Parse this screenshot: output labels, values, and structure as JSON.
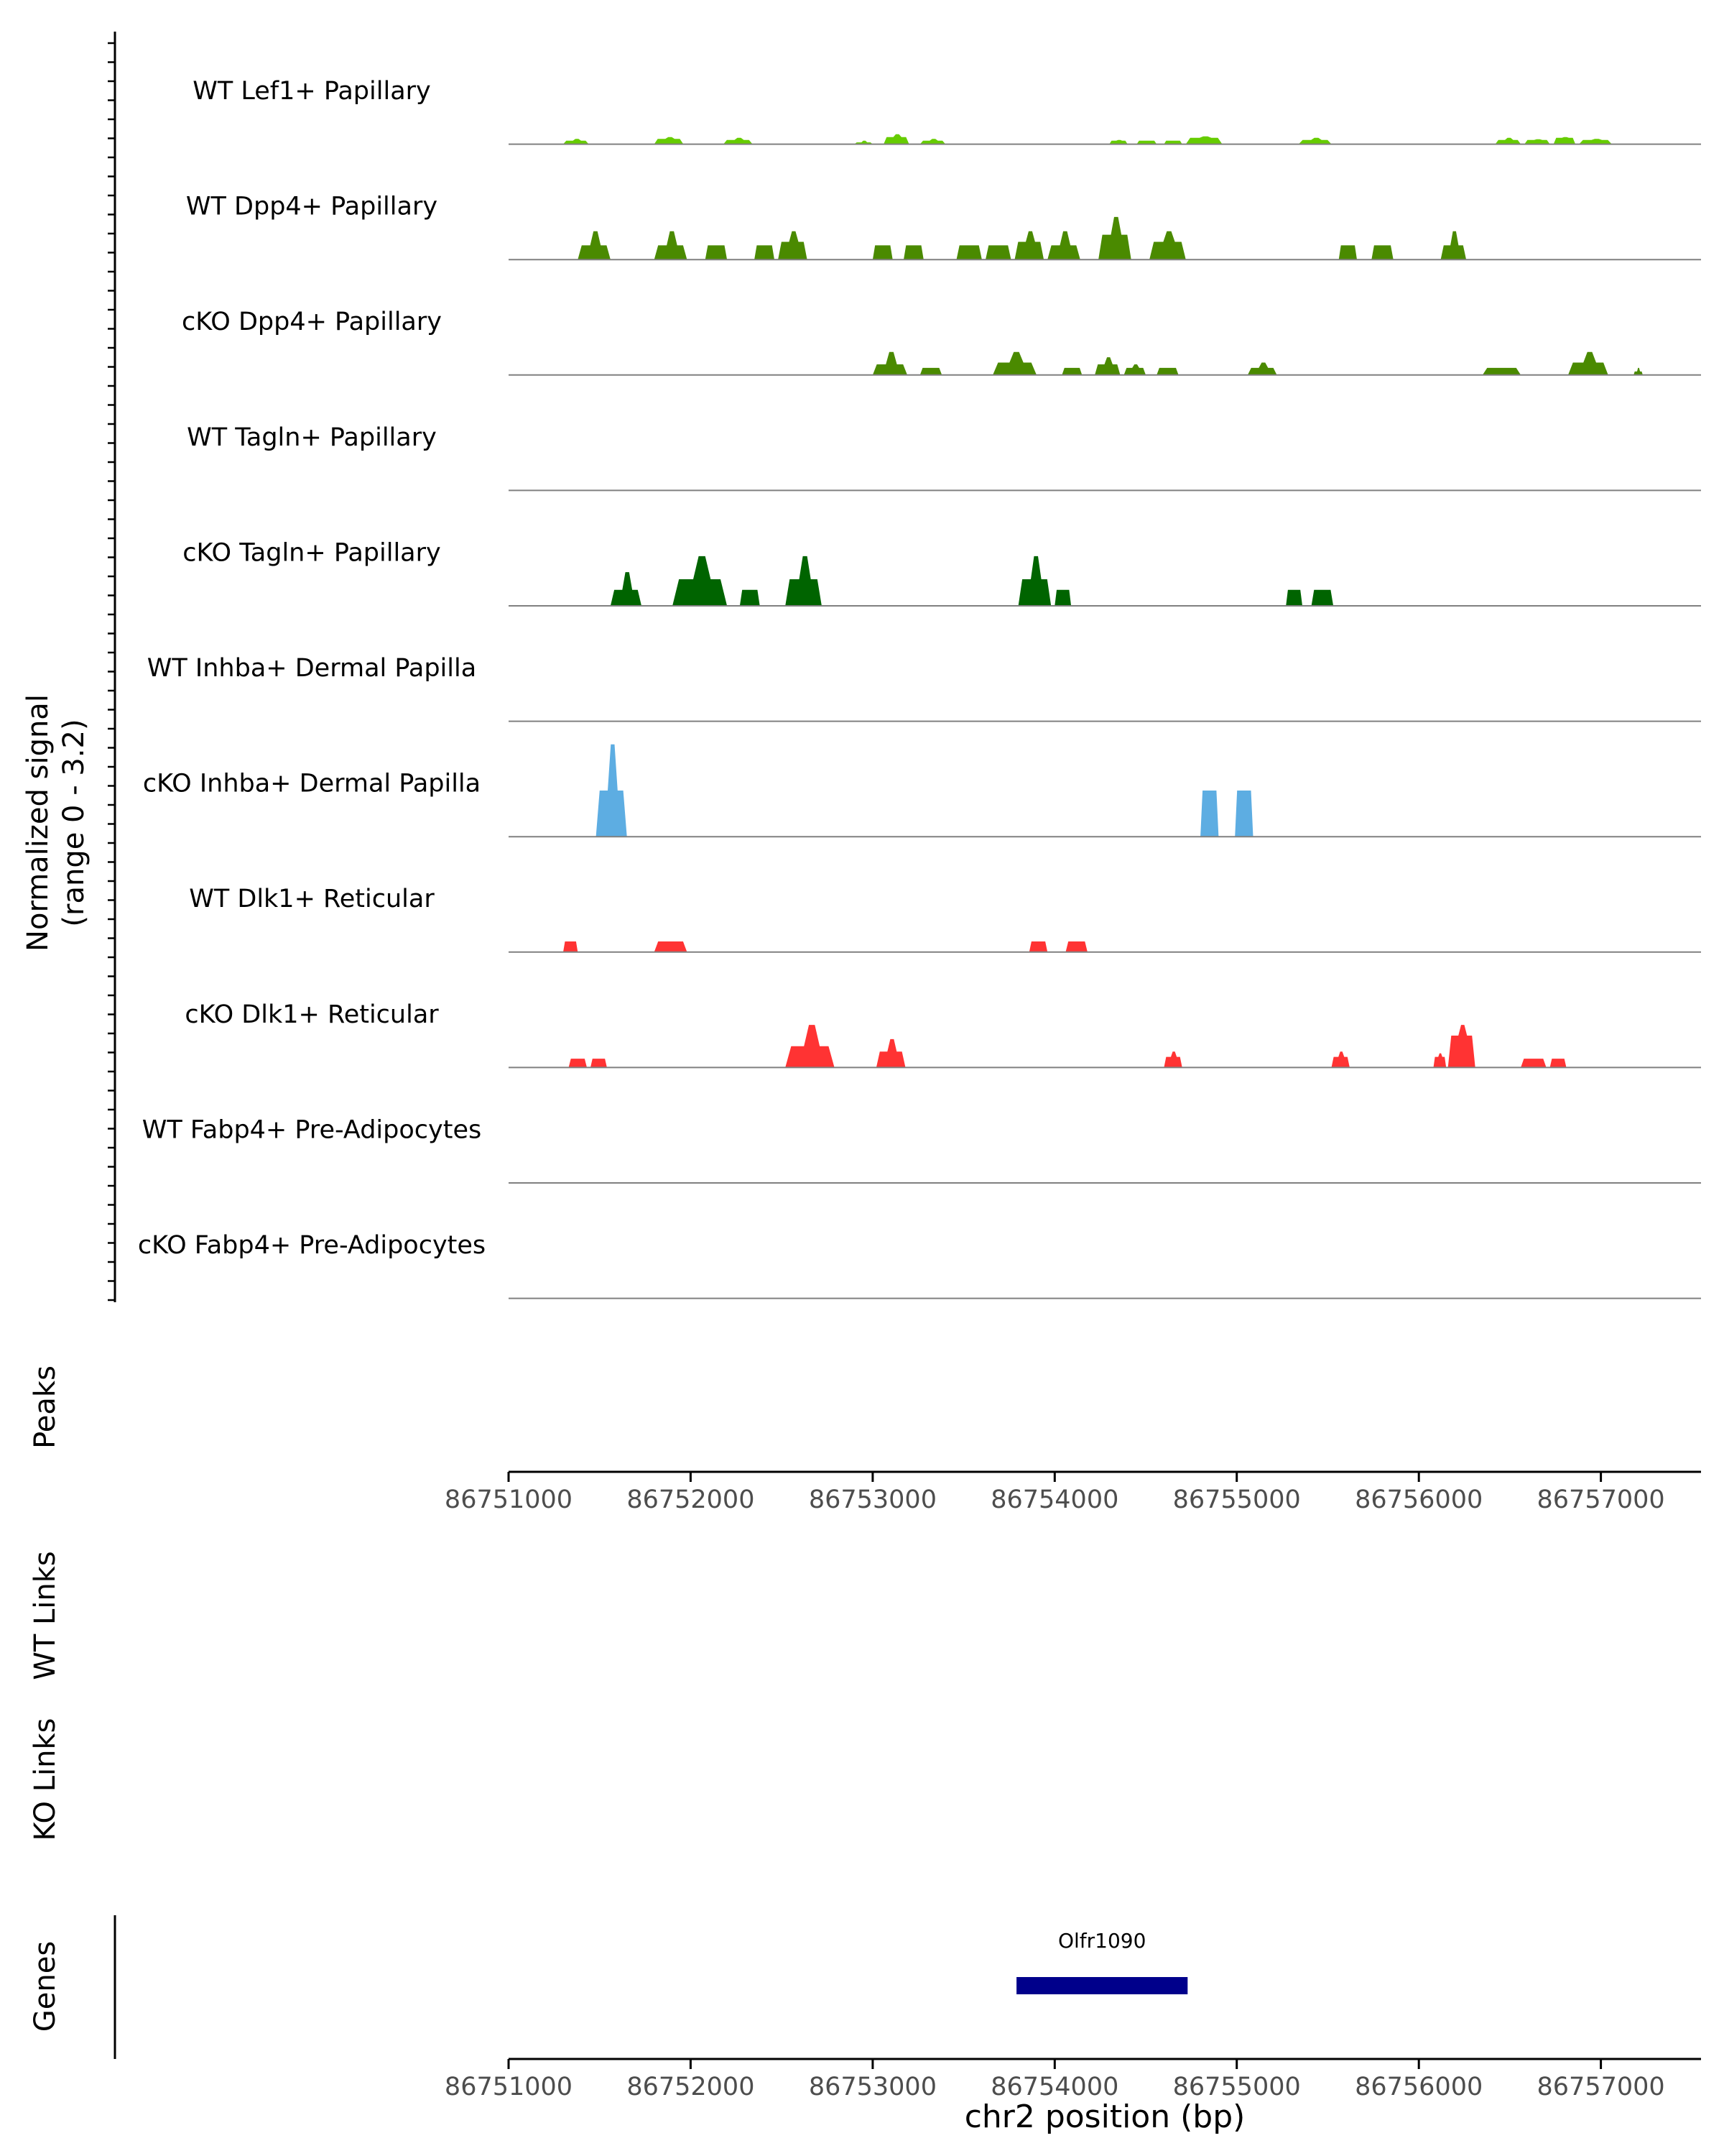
{
  "chart_data": {
    "type": "area",
    "title": "",
    "xlabel": "chr2 position (bp)",
    "ylabel": "Normalized signal",
    "ylabel_range": "(range 0 - 3.2)",
    "xlim": [
      86751000,
      86757550
    ],
    "ylim": [
      0,
      3.2
    ],
    "x_ticks": [
      86751000,
      86752000,
      86753000,
      86754000,
      86755000,
      86756000,
      86757000
    ],
    "x_tick_labels": [
      "86751000",
      "86752000",
      "86753000",
      "86754000",
      "86755000",
      "86756000",
      "86757000"
    ],
    "track_labels": {
      "peaks": "Peaks",
      "wt_links": "WT Links",
      "ko_links": "KO Links",
      "genes": "Genes"
    },
    "tracks": [
      {
        "name": "WT Lef1+ Papillary",
        "color": "#66cc00",
        "peaks": [
          [
            86751300,
            86751440,
            0.15,
            0.1
          ],
          [
            86751800,
            86751960,
            0.2,
            0.15
          ],
          [
            86752180,
            86752340,
            0.18,
            0.12
          ],
          [
            86752900,
            86753000,
            0.1,
            0.05
          ],
          [
            86753060,
            86753200,
            0.28,
            0.2
          ],
          [
            86753260,
            86753400,
            0.15,
            0.1
          ],
          [
            86754300,
            86754400,
            0.12,
            0.1
          ],
          [
            86754450,
            86754560,
            0.1,
            0.1
          ],
          [
            86754600,
            86754700,
            0.1,
            0.1
          ],
          [
            86754720,
            86754920,
            0.22,
            0.18
          ],
          [
            86755340,
            86755520,
            0.18,
            0.12
          ],
          [
            86756420,
            86756560,
            0.18,
            0.12
          ],
          [
            86756580,
            86756720,
            0.14,
            0.12
          ],
          [
            86756740,
            86756860,
            0.2,
            0.18
          ],
          [
            86756880,
            86757060,
            0.15,
            0.12
          ]
        ]
      },
      {
        "name": "WT Dpp4+ Papillary",
        "color": "#4a8a00",
        "peaks": [
          [
            86751380,
            86751560,
            0.8,
            0.4
          ],
          [
            86751800,
            86751980,
            0.8,
            0.4
          ],
          [
            86752080,
            86752200,
            0.4,
            0.4
          ],
          [
            86752350,
            86752460,
            0.4,
            0.4
          ],
          [
            86752480,
            86752640,
            0.8,
            0.5
          ],
          [
            86753000,
            86753110,
            0.4,
            0.4
          ],
          [
            86753170,
            86753280,
            0.4,
            0.4
          ],
          [
            86753460,
            86753600,
            0.4,
            0.4
          ],
          [
            86753620,
            86753760,
            0.4,
            0.4
          ],
          [
            86753780,
            86753940,
            0.8,
            0.5
          ],
          [
            86753960,
            86754140,
            0.8,
            0.4
          ],
          [
            86754240,
            86754420,
            1.2,
            0.7
          ],
          [
            86754520,
            86754720,
            0.8,
            0.5
          ],
          [
            86755560,
            86755660,
            0.4,
            0.4
          ],
          [
            86755740,
            86755860,
            0.4,
            0.4
          ],
          [
            86756120,
            86756260,
            0.8,
            0.4
          ]
        ]
      },
      {
        "name": "cKO Dpp4+ Papillary",
        "color": "#4a8a00",
        "peaks": [
          [
            86753000,
            86753190,
            0.65,
            0.3
          ],
          [
            86753260,
            86753380,
            0.2,
            0.2
          ],
          [
            86753660,
            86753900,
            0.65,
            0.35
          ],
          [
            86754040,
            86754150,
            0.2,
            0.2
          ],
          [
            86754220,
            86754360,
            0.5,
            0.3
          ],
          [
            86754380,
            86754500,
            0.3,
            0.2
          ],
          [
            86754560,
            86754680,
            0.2,
            0.2
          ],
          [
            86755060,
            86755220,
            0.35,
            0.2
          ],
          [
            86756350,
            86756560,
            0.2,
            0.2
          ],
          [
            86756820,
            86757040,
            0.65,
            0.35
          ],
          [
            86757180,
            86757230,
            0.2,
            0.1
          ]
        ]
      },
      {
        "name": "WT Tagln+ Papillary",
        "color": "#006400",
        "peaks": []
      },
      {
        "name": "cKO Tagln+ Papillary",
        "color": "#006400",
        "peaks": [
          [
            86751560,
            86751730,
            0.95,
            0.45
          ],
          [
            86751900,
            86752200,
            1.4,
            0.75
          ],
          [
            86752270,
            86752380,
            0.45,
            0.45
          ],
          [
            86752520,
            86752720,
            1.4,
            0.75
          ],
          [
            86753800,
            86753980,
            1.4,
            0.75
          ],
          [
            86754000,
            86754090,
            0.45,
            0.45
          ],
          [
            86755270,
            86755360,
            0.45,
            0.45
          ],
          [
            86755410,
            86755530,
            0.45,
            0.45
          ]
        ]
      },
      {
        "name": "WT Inhba+ Dermal Papilla",
        "color": "#5dade2",
        "peaks": []
      },
      {
        "name": "cKO Inhba+ Dermal Papilla",
        "color": "#5dade2",
        "peaks": [
          [
            86751480,
            86751650,
            2.6,
            1.3
          ],
          [
            86754800,
            86754900,
            1.3,
            1.3
          ],
          [
            86754990,
            86755090,
            1.3,
            1.3
          ]
        ]
      },
      {
        "name": "WT Dlk1+ Reticular",
        "color": "#ff3333",
        "peaks": [
          [
            86751300,
            86751380,
            0.3,
            0.3
          ],
          [
            86751800,
            86751980,
            0.3,
            0.3
          ],
          [
            86753860,
            86753960,
            0.3,
            0.3
          ],
          [
            86754060,
            86754180,
            0.3,
            0.3
          ]
        ]
      },
      {
        "name": "cKO Dlk1+ Reticular",
        "color": "#ff3333",
        "peaks": [
          [
            86751330,
            86751430,
            0.25,
            0.25
          ],
          [
            86751450,
            86751540,
            0.25,
            0.25
          ],
          [
            86752520,
            86752790,
            1.2,
            0.6
          ],
          [
            86753020,
            86753180,
            0.8,
            0.45
          ],
          [
            86754600,
            86754700,
            0.45,
            0.3
          ],
          [
            86755520,
            86755620,
            0.45,
            0.3
          ],
          [
            86756080,
            86756150,
            0.4,
            0.3
          ],
          [
            86756160,
            86756310,
            1.2,
            0.9
          ],
          [
            86756560,
            86756700,
            0.25,
            0.25
          ],
          [
            86756720,
            86756810,
            0.25,
            0.25
          ]
        ]
      },
      {
        "name": "WT Fabp4+ Pre-Adipocytes",
        "color": "#ff3333",
        "peaks": []
      },
      {
        "name": "cKO Fabp4+ Pre-Adipocytes",
        "color": "#ff3333",
        "peaks": []
      }
    ],
    "genes": [
      {
        "name": "Olfr1090",
        "start": 86753790,
        "end": 86754730,
        "color": "#00008b"
      }
    ]
  }
}
